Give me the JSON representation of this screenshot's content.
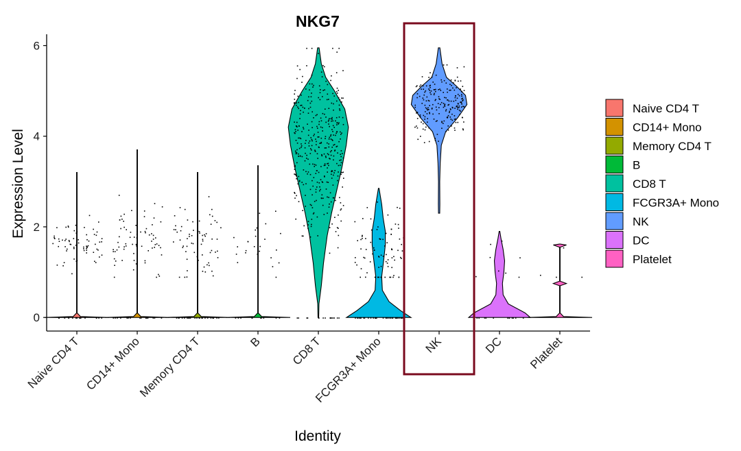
{
  "chart_data": {
    "type": "violin",
    "title": "NKG7",
    "xlabel": "Identity",
    "ylabel": "Expression Level",
    "ylim": [
      -0.3,
      6.25
    ],
    "yticks": [
      0,
      2,
      4,
      6
    ],
    "grid": false,
    "legend_position": "right",
    "categories": [
      "Naive CD4 T",
      "CD14+ Mono",
      "Memory CD4 T",
      "B",
      "CD8 T",
      "FCGR3A+ Mono",
      "NK",
      "DC",
      "Platelet"
    ],
    "colors": [
      "#F8766D",
      "#D39200",
      "#93AA00",
      "#00BA38",
      "#00C19F",
      "#00B9E3",
      "#619CFF",
      "#DB72FB",
      "#FF61C3"
    ],
    "max_expression": [
      3.2,
      3.7,
      3.2,
      3.35,
      5.95,
      2.85,
      5.95,
      1.9,
      1.6
    ],
    "violins": [
      {
        "name": "Naive CD4 T",
        "profile": [
          [
            0,
            0.44
          ],
          [
            0.02,
            0.05
          ],
          [
            0.1,
            0.004
          ],
          [
            3.2,
            0.004
          ]
        ]
      },
      {
        "name": "CD14+ Mono",
        "profile": [
          [
            0,
            0.44
          ],
          [
            0.02,
            0.05
          ],
          [
            0.1,
            0.004
          ],
          [
            3.7,
            0.004
          ]
        ]
      },
      {
        "name": "Memory CD4 T",
        "profile": [
          [
            0,
            0.44
          ],
          [
            0.02,
            0.05
          ],
          [
            0.1,
            0.004
          ],
          [
            3.2,
            0.004
          ]
        ]
      },
      {
        "name": "B",
        "profile": [
          [
            0,
            0.44
          ],
          [
            0.02,
            0.05
          ],
          [
            0.1,
            0.004
          ],
          [
            3.35,
            0.004
          ]
        ]
      },
      {
        "name": "CD8 T",
        "profile": [
          [
            0,
            0.005
          ],
          [
            0.3,
            0.008
          ],
          [
            0.7,
            0.04
          ],
          [
            1.2,
            0.07
          ],
          [
            1.8,
            0.12
          ],
          [
            2.3,
            0.18
          ],
          [
            2.8,
            0.25
          ],
          [
            3.3,
            0.32
          ],
          [
            3.8,
            0.38
          ],
          [
            4.2,
            0.41
          ],
          [
            4.6,
            0.36
          ],
          [
            5.0,
            0.22
          ],
          [
            5.3,
            0.1
          ],
          [
            5.6,
            0.04
          ],
          [
            5.95,
            0.01
          ]
        ]
      },
      {
        "name": "FCGR3A+ Mono",
        "profile": [
          [
            0,
            0.44
          ],
          [
            0.15,
            0.3
          ],
          [
            0.35,
            0.14
          ],
          [
            0.6,
            0.05
          ],
          [
            0.9,
            0.04
          ],
          [
            1.3,
            0.07
          ],
          [
            1.6,
            0.09
          ],
          [
            1.9,
            0.09
          ],
          [
            2.2,
            0.06
          ],
          [
            2.5,
            0.04
          ],
          [
            2.7,
            0.02
          ],
          [
            2.85,
            0.005
          ]
        ]
      },
      {
        "name": "NK",
        "profile": [
          [
            2.3,
            0.008
          ],
          [
            2.5,
            0.01
          ],
          [
            3.0,
            0.008
          ],
          [
            3.4,
            0.015
          ],
          [
            3.8,
            0.03
          ],
          [
            4.1,
            0.09
          ],
          [
            4.4,
            0.25
          ],
          [
            4.7,
            0.38
          ],
          [
            4.9,
            0.36
          ],
          [
            5.1,
            0.24
          ],
          [
            5.3,
            0.1
          ],
          [
            5.6,
            0.04
          ],
          [
            5.95,
            0.01
          ]
        ]
      },
      {
        "name": "DC",
        "profile": [
          [
            0,
            0.42
          ],
          [
            0.1,
            0.35
          ],
          [
            0.3,
            0.12
          ],
          [
            0.5,
            0.05
          ],
          [
            0.75,
            0.04
          ],
          [
            1.0,
            0.06
          ],
          [
            1.25,
            0.07
          ],
          [
            1.5,
            0.05
          ],
          [
            1.75,
            0.02
          ],
          [
            1.9,
            0.005
          ]
        ]
      },
      {
        "name": "Platelet",
        "profile": [
          [
            0,
            0.44
          ],
          [
            0.02,
            0.05
          ],
          [
            0.1,
            0.004
          ],
          [
            0.7,
            0.004
          ],
          [
            0.75,
            0.09
          ],
          [
            0.8,
            0.004
          ],
          [
            1.55,
            0.004
          ],
          [
            1.6,
            0.09
          ],
          [
            1.62,
            0.004
          ]
        ]
      }
    ],
    "jitter": [
      {
        "name": "Naive CD4 T",
        "count": 85,
        "center": 1.7,
        "sd": 0.3,
        "zero_fraction": 0.2
      },
      {
        "name": "CD14+ Mono",
        "count": 90,
        "center": 1.7,
        "sd": 0.35,
        "zero_fraction": 0.2
      },
      {
        "name": "Memory CD4 T",
        "count": 90,
        "center": 1.75,
        "sd": 0.35,
        "zero_fraction": 0.2
      },
      {
        "name": "B",
        "count": 35,
        "center": 1.7,
        "sd": 0.45,
        "zero_fraction": 0.2
      },
      {
        "name": "CD8 T",
        "count": 420,
        "center": 3.7,
        "sd": 0.9,
        "zero_fraction": 0.04
      },
      {
        "name": "FCGR3A+ Mono",
        "count": 120,
        "center": 1.5,
        "sd": 0.45,
        "zero_fraction": 0.3
      },
      {
        "name": "NK",
        "count": 220,
        "center": 4.75,
        "sd": 0.35,
        "zero_fraction": 0
      },
      {
        "name": "DC",
        "count": 20,
        "center": 1.1,
        "sd": 0.4,
        "zero_fraction": 0.3
      },
      {
        "name": "Platelet",
        "count": 4,
        "center": 0.8,
        "sd": 0.4,
        "zero_fraction": 0
      }
    ],
    "highlight": {
      "category": "NK",
      "color": "#7A0A1E"
    }
  }
}
